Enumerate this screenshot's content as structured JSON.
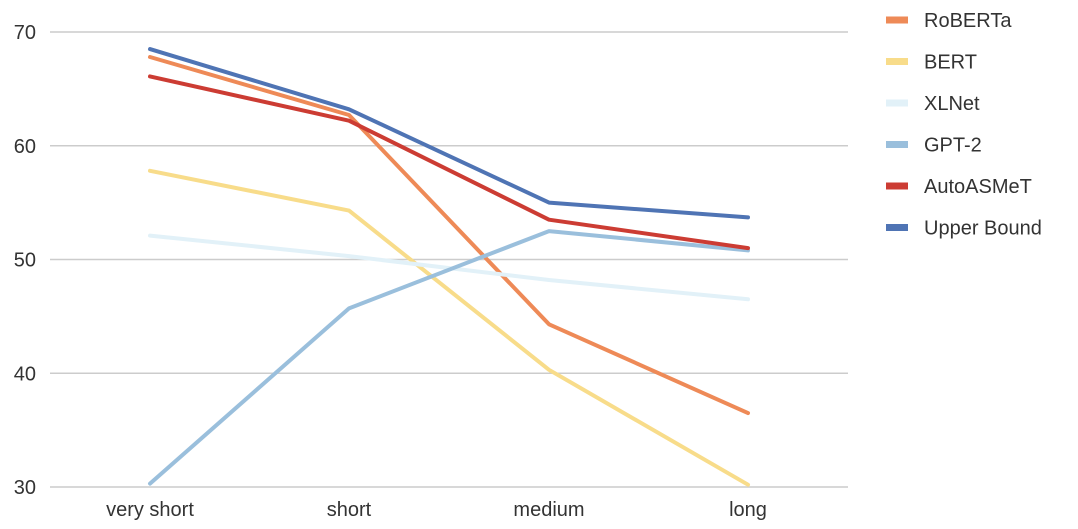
{
  "chart_data": {
    "type": "line",
    "x": [
      "very short",
      "short",
      "medium",
      "long"
    ],
    "ylim": [
      30,
      70
    ],
    "yticks": [
      "70",
      "60",
      "50",
      "40",
      "30"
    ],
    "grid": true,
    "legend_position": "right",
    "series": [
      {
        "name": "RoBERTa",
        "color": "#EE8A57",
        "values": [
          67.8,
          62.7,
          44.3,
          36.5
        ]
      },
      {
        "name": "BERT",
        "color": "#F8DC8A",
        "values": [
          57.8,
          54.3,
          40.3,
          30.2
        ]
      },
      {
        "name": "XLNet",
        "color": "#E2F1F8",
        "values": [
          52.1,
          50.3,
          48.2,
          46.5
        ]
      },
      {
        "name": "GPT-2",
        "color": "#9ABFDC",
        "values": [
          30.3,
          45.7,
          52.5,
          50.8
        ]
      },
      {
        "name": "AutoASMeT",
        "color": "#CC3C33",
        "values": [
          66.1,
          62.2,
          53.5,
          51.0
        ]
      },
      {
        "name": "Upper Bound",
        "color": "#4F74B4",
        "values": [
          68.5,
          63.2,
          55.0,
          53.7
        ]
      }
    ]
  }
}
